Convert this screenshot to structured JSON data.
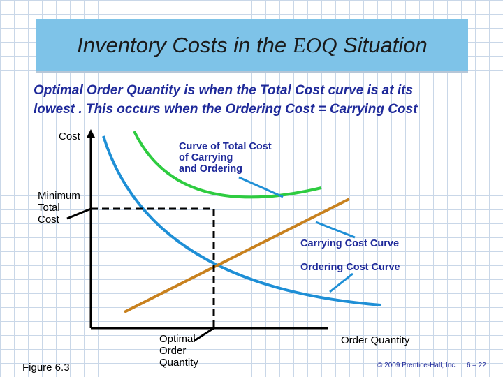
{
  "title": {
    "part1": "Inventory Costs in the ",
    "part2": "EOQ",
    "part3": " Situation"
  },
  "subtitle": {
    "line1": "Optimal Order Quantity is when the Total Cost curve is at its",
    "line2": "lowest . This occurs when the Ordering Cost = Carrying Cost"
  },
  "labels": {
    "y_axis": "Cost",
    "x_axis": "Order Quantity",
    "minimum_total_cost": [
      "Minimum",
      "Total",
      "Cost"
    ],
    "optimal_order_quantity": [
      "Optimal",
      "Order",
      "Quantity"
    ],
    "total_cost_curve": [
      "Curve of Total Cost",
      "of Carrying",
      "and Ordering"
    ],
    "carrying_cost_curve": "Carrying Cost Curve",
    "ordering_cost_curve": "Ordering Cost Curve",
    "figure": "Figure 6.3",
    "copyright": "© 2009 Prentice-Hall, Inc.",
    "page": "6 – 22"
  },
  "colors": {
    "title_bg": "#7ec3e8",
    "subtitle_text": "#1f2a9a",
    "total_cost": "#2ecc40",
    "ordering_cost": "#1e8fd6",
    "carrying_cost": "#c8811e"
  }
}
